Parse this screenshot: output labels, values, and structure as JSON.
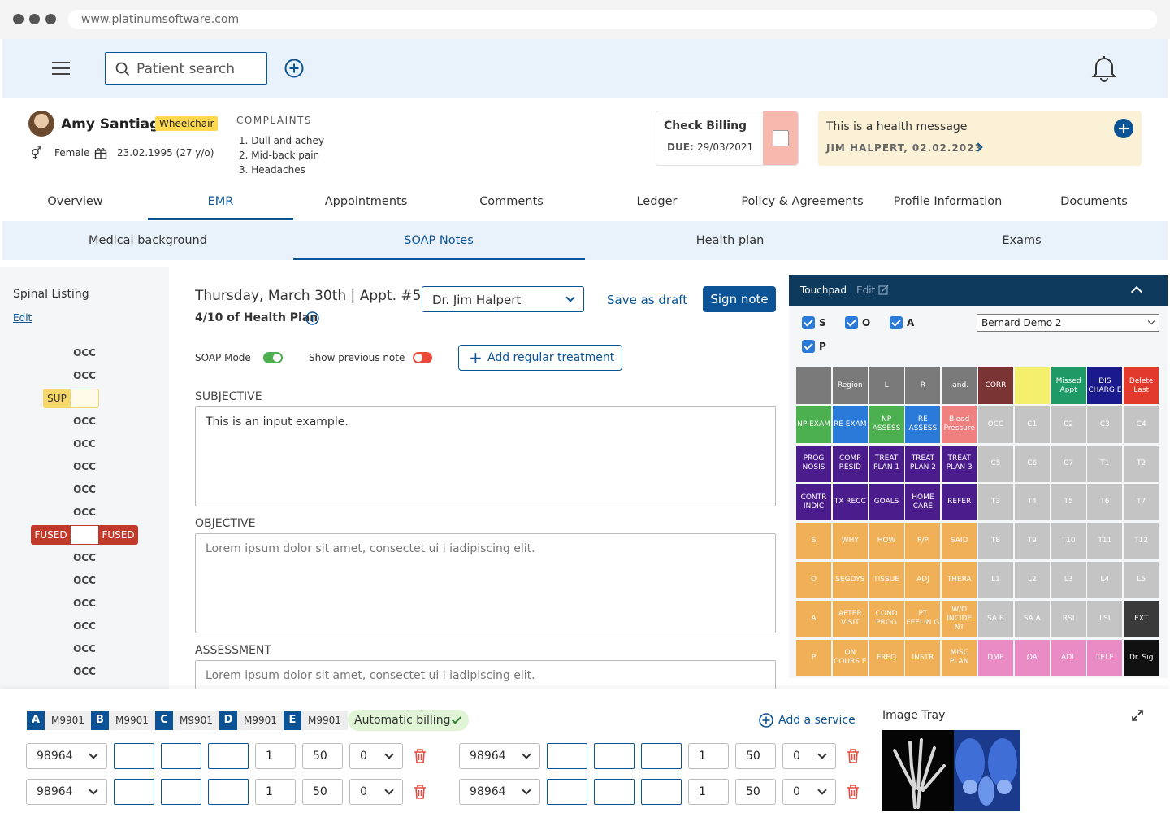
{
  "browser": {
    "url": "www.platinumsoftware.com"
  },
  "topbar": {
    "search_placeholder": "Patient search"
  },
  "patient": {
    "name": "Amy Santiago",
    "badge": "Wheelchair",
    "gender": "Female",
    "dob": "23.02.1995 (27 y/o)"
  },
  "complaints": {
    "title": "COMPLAINTS",
    "items": [
      "1. Dull and achey",
      "2. Mid-back pain",
      "3. Headaches"
    ]
  },
  "billing": {
    "title": "Check Billing",
    "due_label": "DUE:",
    "due_date": "29/03/2021"
  },
  "message": {
    "text": "This is a health message",
    "author": "JIM HALPERT, 02.02.2023"
  },
  "tabs": [
    "Overview",
    "EMR",
    "Appointments",
    "Comments",
    "Ledger",
    "Policy & Agreements",
    "Profile Information",
    "Documents"
  ],
  "subtabs": [
    "Medical background",
    "SOAP Notes",
    "Health plan",
    "Exams"
  ],
  "spinal": {
    "title": "Spinal Listing",
    "edit": "Edit",
    "occ": "OCC",
    "sup": "SUP",
    "fused": "FUSED"
  },
  "note": {
    "date": "Thursday, March 30th",
    "appt": "Appt. #5",
    "plan": "4/10 of Health Plan",
    "doctor": "Dr. Jim Halpert",
    "save_draft": "Save as draft",
    "sign": "Sign note",
    "soap_mode": "SOAP Mode",
    "show_prev": "Show previous note",
    "add_treatment": "Add regular treatment"
  },
  "sections": {
    "subjective": "SUBJECTIVE",
    "subjective_value": "This is an input example.",
    "objective": "OBJECTIVE",
    "objective_placeholder": "Lorem ipsum dolor sit amet, consectet ui i iadipiscing elit.",
    "assessment": "ASSESSMENT",
    "assessment_placeholder": "Lorem ipsum dolor sit amet, consectet ui i iadipiscing elit."
  },
  "touchpad": {
    "title": "Touchpad",
    "edit": "Edit",
    "checks": [
      "S",
      "O",
      "A",
      "P"
    ],
    "select": "Bernard Demo 2",
    "tiles": [
      [
        "",
        "Region",
        "L",
        "R",
        ",and.",
        "CORR",
        "",
        "Missed Appt",
        "DIS CHARG E",
        "Delete Last"
      ],
      [
        "NP EXAM",
        "RE EXAM",
        "NP ASSESS",
        "RE ASSESS",
        "Blood Pressure",
        "OCC",
        "C1",
        "C2",
        "C3",
        "C4"
      ],
      [
        "PROG NOSIS",
        "COMP RESID",
        "TREAT PLAN 1",
        "TREAT PLAN 2",
        "TREAT PLAN 3",
        "C5",
        "C6",
        "C7",
        "T1",
        "T2"
      ],
      [
        "CONTR INDIC",
        "TX RECC",
        "GOALS",
        "HOME CARE",
        "REFER",
        "T3",
        "T4",
        "T5",
        "T6",
        "T7"
      ],
      [
        "S",
        "WHY",
        "HOW",
        "P/P",
        "SAID",
        "T8",
        "T9",
        "T10",
        "T11",
        "T12"
      ],
      [
        "O",
        "SEGDYS",
        "TISSUE",
        "ADJ",
        "THERA",
        "L1",
        "L2",
        "L3",
        "L4",
        "L5"
      ],
      [
        "A",
        "AFTER VISIT",
        "COND PROG",
        "PT FEELIN G",
        "W/O INCIDE NT",
        "SA B",
        "SA A",
        "RSI",
        "LSI",
        "EXT"
      ],
      [
        "P",
        "ON COURS E",
        "FREQ",
        "INSTR",
        "MISC PLAN",
        "DME",
        "OA",
        "ADL",
        "TELE",
        "Dr. Sig"
      ]
    ],
    "colors": [
      [
        "#7a7a7a",
        "#7a7a7a",
        "#7a7a7a",
        "#7a7a7a",
        "#7a7a7a",
        "#7b3434",
        "#f4f06e",
        "#1e9a66",
        "#1a1a8c",
        "#e23b2e"
      ],
      [
        "#4caf50",
        "#2a7ad9",
        "#4caf50",
        "#2a7ad9",
        "#f08080",
        "#c4c4c4",
        "#c4c4c4",
        "#c4c4c4",
        "#c4c4c4",
        "#c4c4c4"
      ],
      [
        "#4a1c8c",
        "#4a1c8c",
        "#4a1c8c",
        "#4a1c8c",
        "#4a1c8c",
        "#c4c4c4",
        "#c4c4c4",
        "#c4c4c4",
        "#c4c4c4",
        "#c4c4c4"
      ],
      [
        "#4a1c8c",
        "#4a1c8c",
        "#4a1c8c",
        "#4a1c8c",
        "#4a1c8c",
        "#c4c4c4",
        "#c4c4c4",
        "#c4c4c4",
        "#c4c4c4",
        "#c4c4c4"
      ],
      [
        "#f0b058",
        "#f0b058",
        "#f0b058",
        "#f0b058",
        "#f0b058",
        "#c4c4c4",
        "#c4c4c4",
        "#c4c4c4",
        "#c4c4c4",
        "#c4c4c4"
      ],
      [
        "#f0b058",
        "#f0b058",
        "#f0b058",
        "#f0b058",
        "#f0b058",
        "#c4c4c4",
        "#c4c4c4",
        "#c4c4c4",
        "#c4c4c4",
        "#c4c4c4"
      ],
      [
        "#f0b058",
        "#f0b058",
        "#f0b058",
        "#f0b058",
        "#f0b058",
        "#c4c4c4",
        "#c4c4c4",
        "#c4c4c4",
        "#c4c4c4",
        "#3a3a3a"
      ],
      [
        "#f0b058",
        "#f0b058",
        "#f0b058",
        "#f0b058",
        "#f0b058",
        "#e98bc4",
        "#e98bc4",
        "#e98bc4",
        "#e98bc4",
        "#111111"
      ]
    ]
  },
  "billing_codes": [
    {
      "letter": "A",
      "code": "M9901"
    },
    {
      "letter": "B",
      "code": "M9901"
    },
    {
      "letter": "C",
      "code": "M9901"
    },
    {
      "letter": "D",
      "code": "M9901"
    },
    {
      "letter": "E",
      "code": "M9901"
    }
  ],
  "auto_billing": "Automatic billing",
  "add_service": "Add a service",
  "service_row": {
    "code": "98964",
    "units": "1",
    "amount": "50",
    "modifier": "0"
  },
  "image_tray": {
    "title": "Image Tray"
  }
}
